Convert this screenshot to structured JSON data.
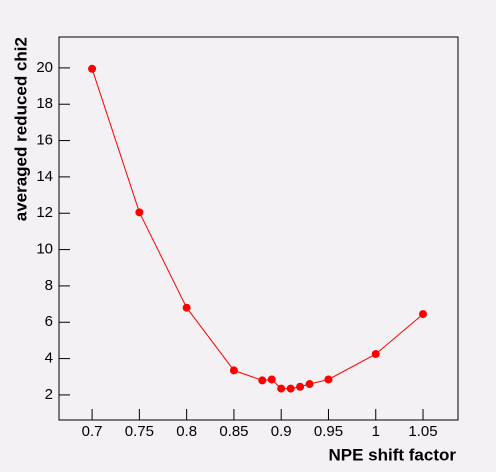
{
  "chart_data": {
    "type": "line",
    "x_label": "NPE shift factor",
    "y_label": "averaged reduced chi2",
    "x": [
      0.7,
      0.75,
      0.8,
      0.85,
      0.88,
      0.89,
      0.9,
      0.91,
      0.92,
      0.93,
      0.95,
      1.0,
      1.05
    ],
    "series": [
      {
        "color": "#ff0000",
        "values": [
          19.95,
          12.05,
          6.8,
          3.35,
          2.8,
          2.85,
          2.35,
          2.35,
          2.45,
          2.6,
          2.85,
          4.25,
          6.45
        ]
      }
    ],
    "xlim": [
      0.665,
      1.087
    ],
    "ylim": [
      0.62,
      21.7
    ],
    "xticks": [
      0.7,
      0.75,
      0.8,
      0.85,
      0.9,
      0.95,
      1,
      1.05
    ],
    "yticks": [
      2,
      4,
      6,
      8,
      10,
      12,
      14,
      16,
      18,
      20
    ]
  }
}
